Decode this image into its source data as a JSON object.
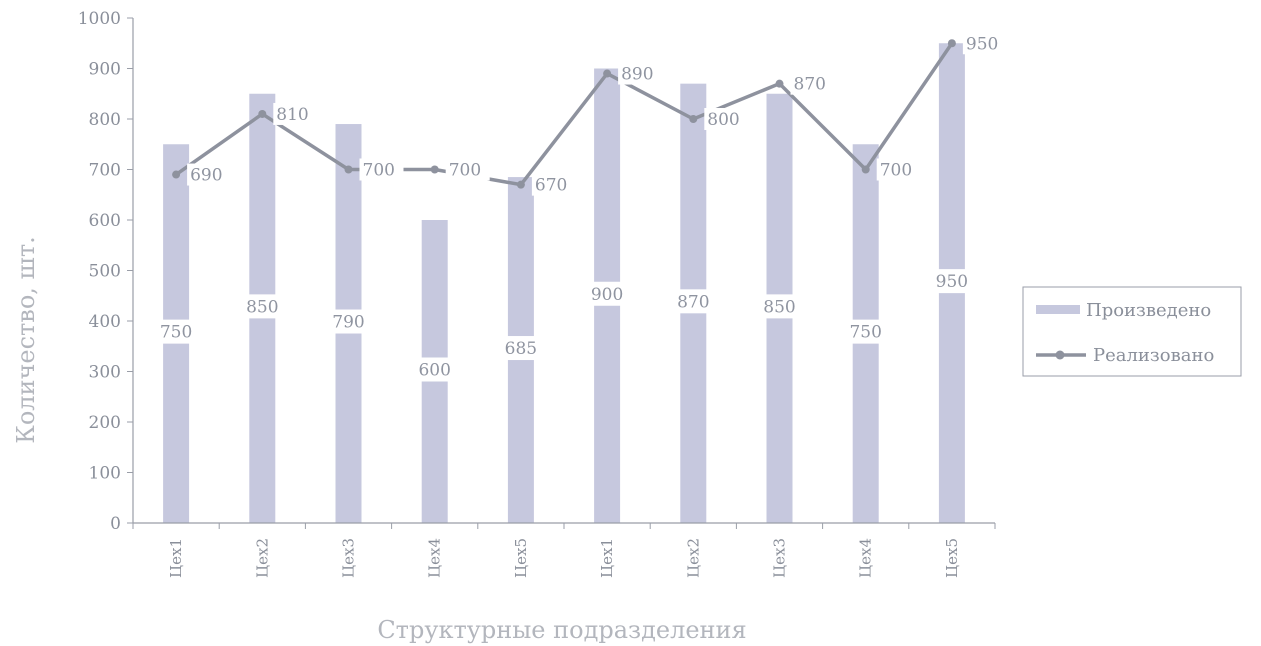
{
  "chart_data": {
    "type": "bar",
    "categories": [
      "Цех1",
      "Цех2",
      "Цех3",
      "Цех4",
      "Цех5",
      "Цех1",
      "Цех2",
      "Цех3",
      "Цех4",
      "Цех5"
    ],
    "series": [
      {
        "name": "Произведено",
        "type": "bar",
        "values": [
          750,
          850,
          790,
          600,
          685,
          900,
          870,
          850,
          750,
          950
        ],
        "color": "#c6c8de"
      },
      {
        "name": "Реализовано",
        "type": "line",
        "values": [
          690,
          810,
          700,
          700,
          670,
          890,
          800,
          870,
          700,
          950
        ],
        "color": "#8e929e"
      }
    ],
    "xlabel": "Структурные подразделения",
    "ylabel": "Количество, шт.",
    "ylim": [
      0,
      1000
    ],
    "yticks": [
      "0",
      "100",
      "200",
      "300",
      "400",
      "500",
      "600",
      "700",
      "800",
      "900",
      "1000"
    ],
    "legend": "right",
    "grid": false
  }
}
